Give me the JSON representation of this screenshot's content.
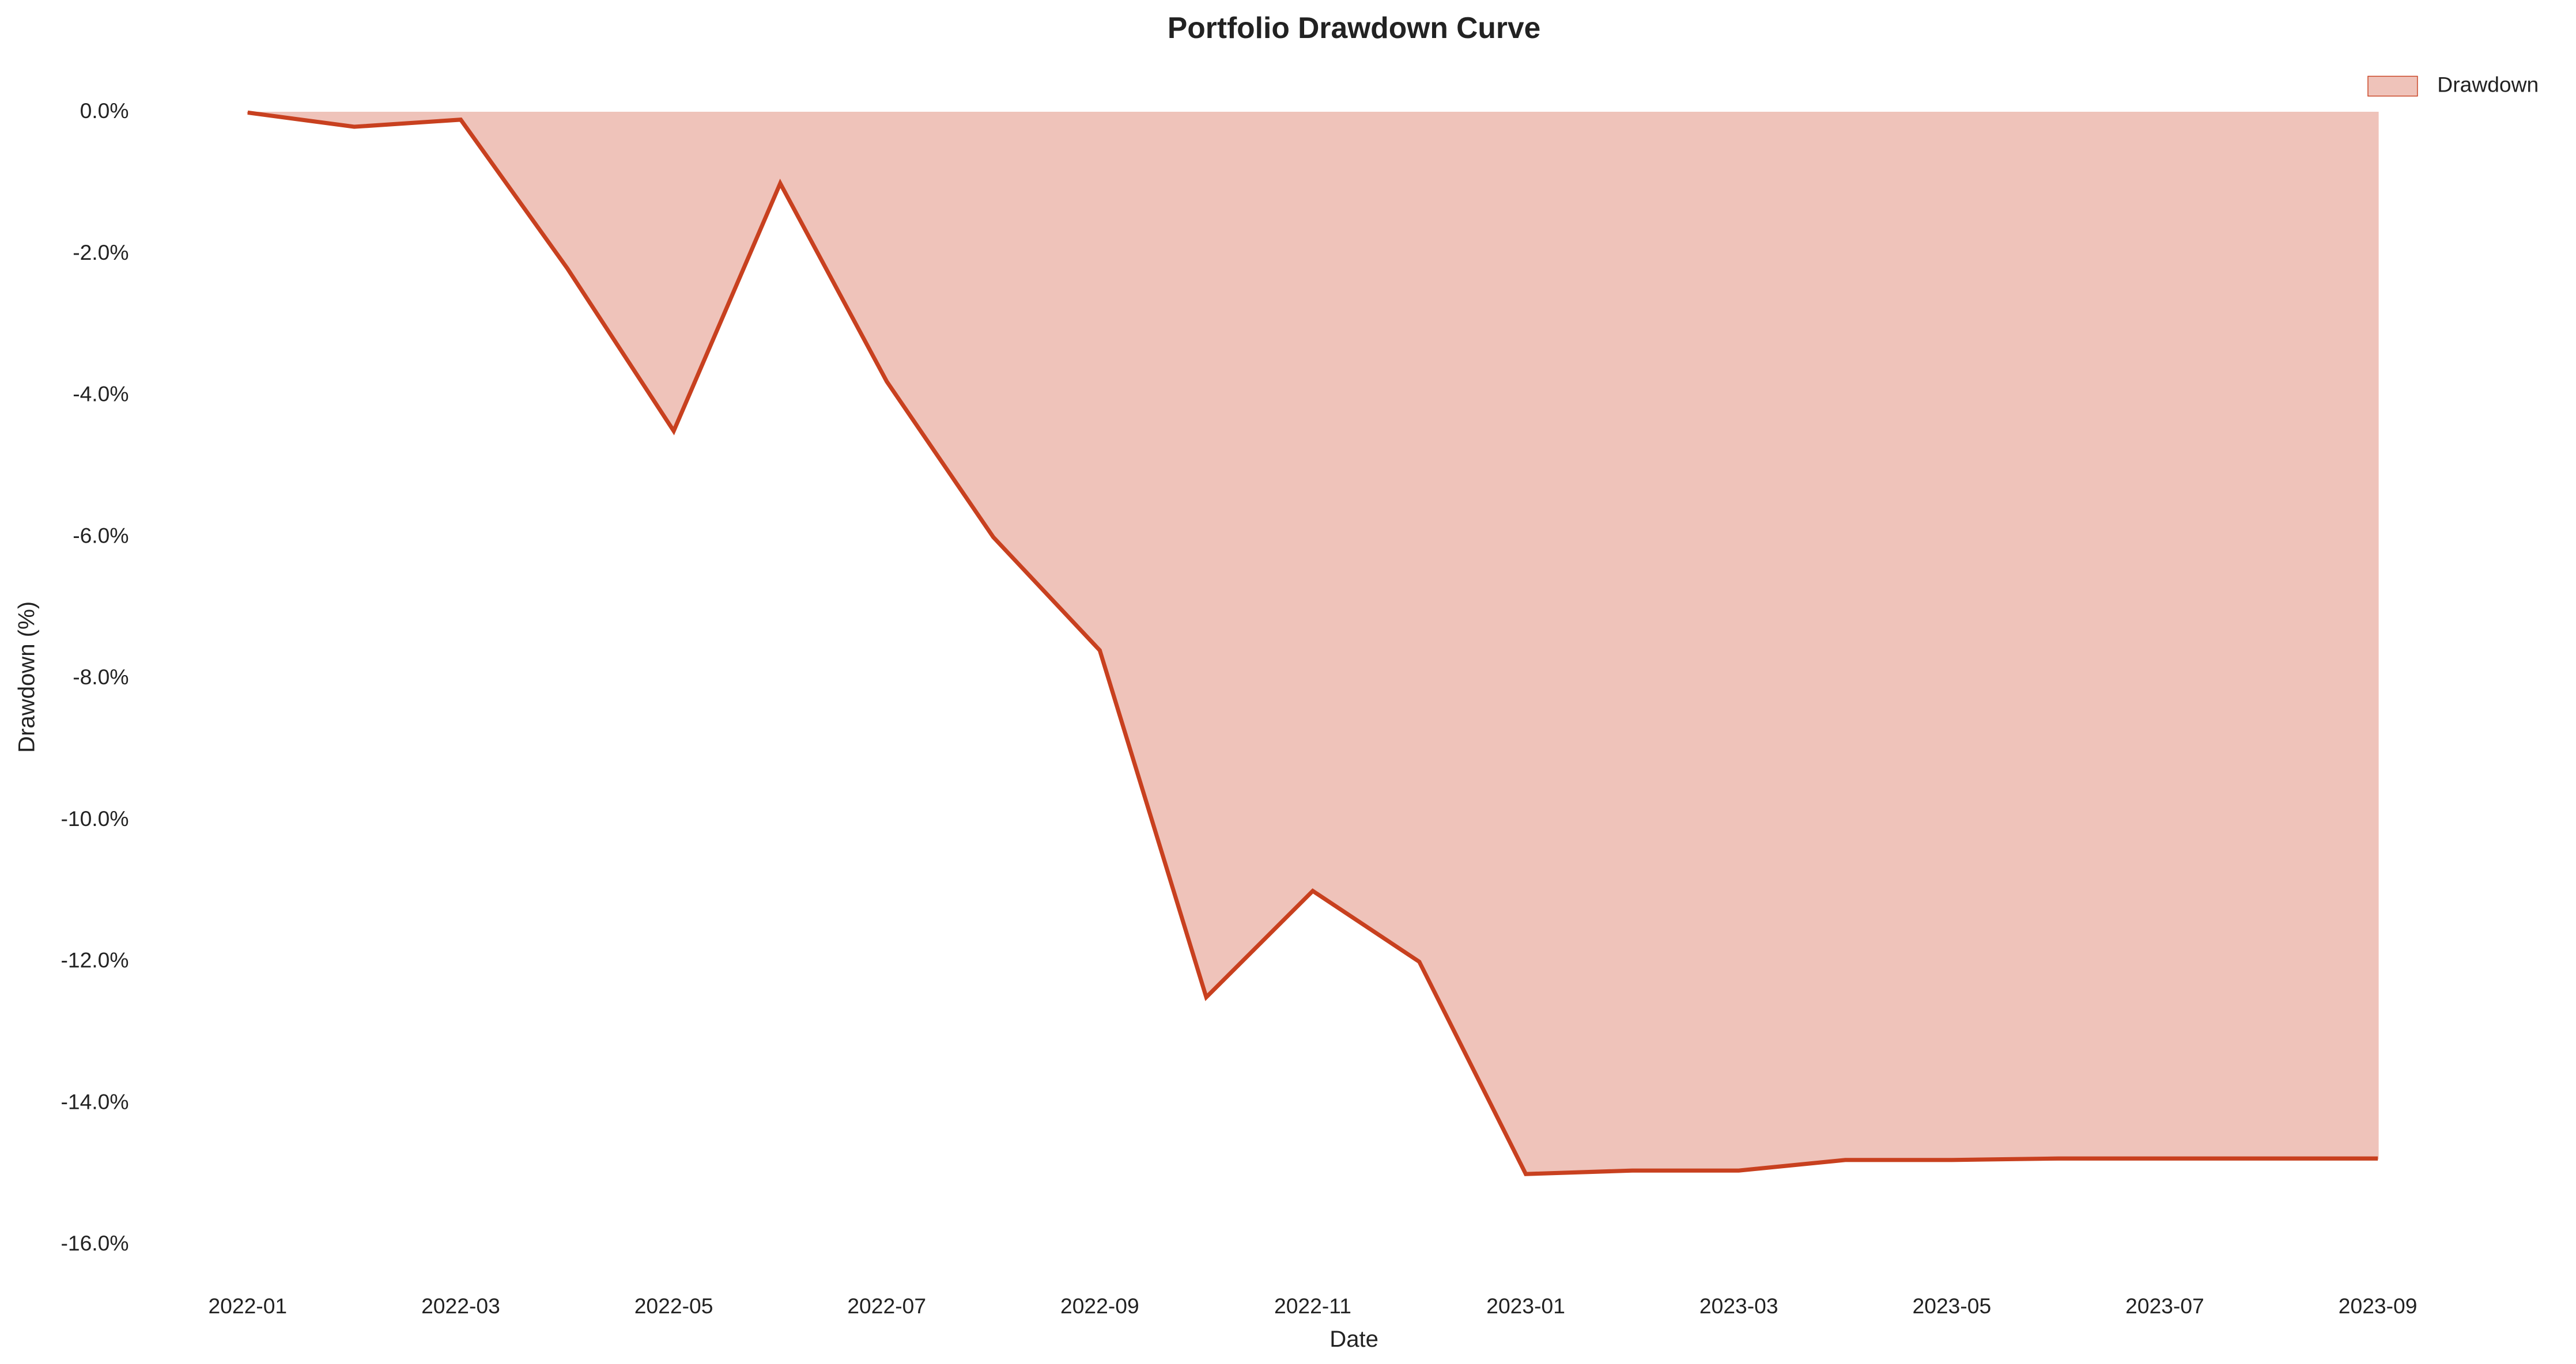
{
  "chart_data": {
    "type": "area",
    "title": "Portfolio Drawdown Curve",
    "x_label": "Date",
    "y_label": "Drawdown (%)",
    "x": [
      "2022-01",
      "2022-02",
      "2022-03",
      "2022-04",
      "2022-05",
      "2022-06",
      "2022-07",
      "2022-08",
      "2022-09",
      "2022-10",
      "2022-11",
      "2022-12",
      "2023-01",
      "2023-02",
      "2023-03",
      "2023-04",
      "2023-05",
      "2023-06",
      "2023-07",
      "2023-08",
      "2023-09"
    ],
    "series": [
      {
        "name": "Drawdown",
        "color": "#c8401f",
        "fill": "#efc3ba",
        "values": [
          0,
          -0.2,
          -0.1,
          -2.2,
          -4.5,
          -1.0,
          -3.8,
          -6.0,
          -7.6,
          -12.5,
          -11.0,
          -12.0,
          -15.0,
          -14.95,
          -14.95,
          -14.8,
          -14.8,
          -14.78,
          -14.78,
          -14.78,
          -14.78
        ]
      }
    ],
    "ylim": [
      -16.2,
      0.2
    ],
    "yticks": [
      {
        "value": 0,
        "label": "0.0%"
      },
      {
        "value": -2,
        "label": "-2.0%"
      },
      {
        "value": -4,
        "label": "-4.0%"
      },
      {
        "value": -6,
        "label": "-6.0%"
      },
      {
        "value": -8,
        "label": "-8.0%"
      },
      {
        "value": -10,
        "label": "-10.0%"
      },
      {
        "value": -12,
        "label": "-12.0%"
      },
      {
        "value": -14,
        "label": "-14.0%"
      },
      {
        "value": -16,
        "label": "-16.0%"
      }
    ],
    "legend": "upper right"
  }
}
